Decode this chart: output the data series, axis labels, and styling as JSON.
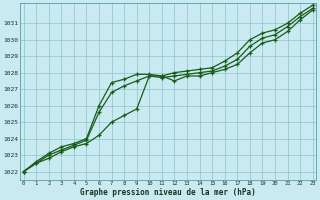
{
  "title": "Graphe pression niveau de la mer (hPa)",
  "bg_color": "#c8eaf0",
  "grid_color": "#89c4cc",
  "line_color": "#1a5c1a",
  "x_min": 0,
  "x_max": 23,
  "y_min": 1021.5,
  "y_max": 1032.2,
  "y_ticks": [
    1022,
    1023,
    1024,
    1025,
    1026,
    1027,
    1028,
    1029,
    1030,
    1031
  ],
  "series1": [
    1022.0,
    1022.5,
    1022.8,
    1023.2,
    1023.5,
    1023.7,
    1024.2,
    1025.0,
    1025.4,
    1025.8,
    1027.8,
    1027.8,
    1027.5,
    1027.8,
    1027.8,
    1028.0,
    1028.2,
    1028.5,
    1029.2,
    1029.8,
    1030.0,
    1030.5,
    1031.2,
    1031.8
  ],
  "series2": [
    1022.0,
    1022.5,
    1023.0,
    1023.3,
    1023.6,
    1023.9,
    1025.6,
    1026.8,
    1027.2,
    1027.5,
    1027.8,
    1027.7,
    1027.8,
    1027.9,
    1028.0,
    1028.1,
    1028.4,
    1028.8,
    1029.6,
    1030.1,
    1030.3,
    1030.8,
    1031.4,
    1031.9
  ],
  "series3": [
    1022.0,
    1022.6,
    1023.1,
    1023.5,
    1023.7,
    1024.0,
    1026.0,
    1027.4,
    1027.6,
    1027.9,
    1027.9,
    1027.8,
    1028.0,
    1028.1,
    1028.2,
    1028.3,
    1028.7,
    1029.2,
    1030.0,
    1030.4,
    1030.6,
    1031.0,
    1031.6,
    1032.1
  ],
  "x_labels": [
    "0",
    "1",
    "2",
    "3",
    "4",
    "5",
    "6",
    "7",
    "8",
    "9",
    "10",
    "11",
    "12",
    "13",
    "14",
    "15",
    "16",
    "17",
    "18",
    "19",
    "20",
    "21",
    "22",
    "23"
  ]
}
